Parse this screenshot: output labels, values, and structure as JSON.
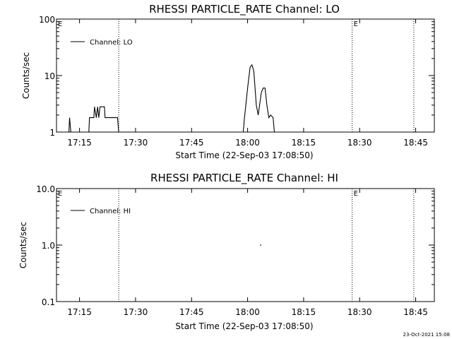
{
  "chart_data": [
    {
      "type": "line",
      "title": "RHESSI PARTICLE_RATE Channel: LO",
      "xlabel": "Start Time (22-Sep-03 17:08:50)",
      "ylabel": "Counts/sec",
      "yscale": "log",
      "ylim": [
        1,
        100
      ],
      "xlim": [
        "17:08:50",
        "18:50:00"
      ],
      "x_ticks": [
        "17:15",
        "17:30",
        "17:45",
        "18:00",
        "18:15",
        "18:30",
        "18:45"
      ],
      "y_ticks": [
        "1",
        "10",
        "100"
      ],
      "legend": [
        "Channel: LO"
      ],
      "legend_position": "top-left",
      "grid": false,
      "markers": [
        {
          "time": "17:25:30",
          "flag": ""
        },
        {
          "time": "18:28:00",
          "flag": "E"
        },
        {
          "time": "18:44:30",
          "flag": ""
        }
      ],
      "axis_flag": "E",
      "segments": [
        [
          [
            "17:12:10",
            1
          ],
          [
            "17:12:20",
            1.8
          ],
          [
            "17:12:40",
            1
          ]
        ],
        [
          [
            "17:17:30",
            1
          ],
          [
            "17:17:40",
            1.8
          ],
          [
            "17:18:50",
            1.8
          ],
          [
            "17:19:00",
            2.8
          ],
          [
            "17:19:30",
            1.8
          ],
          [
            "17:19:50",
            2.8
          ],
          [
            "17:20:10",
            1.8
          ],
          [
            "17:20:30",
            2.8
          ],
          [
            "17:21:40",
            2.8
          ],
          [
            "17:21:50",
            1.8
          ],
          [
            "17:25:10",
            1.8
          ],
          [
            "17:25:30",
            1
          ]
        ],
        [
          [
            "17:58:50",
            1
          ],
          [
            "17:59:10",
            1.8
          ],
          [
            "18:00:00",
            6
          ],
          [
            "18:00:40",
            14
          ],
          [
            "18:01:10",
            15.5
          ],
          [
            "18:01:40",
            12
          ],
          [
            "18:02:20",
            3
          ],
          [
            "18:02:50",
            2
          ],
          [
            "18:03:40",
            5
          ],
          [
            "18:04:10",
            6
          ],
          [
            "18:04:40",
            6
          ],
          [
            "18:05:10",
            3
          ],
          [
            "18:05:40",
            1.8
          ],
          [
            "18:06:10",
            2
          ],
          [
            "18:06:50",
            1.8
          ],
          [
            "18:07:10",
            1
          ]
        ]
      ]
    },
    {
      "type": "line",
      "title": "RHESSI PARTICLE_RATE Channel: HI",
      "xlabel": "Start Time (22-Sep-03 17:08:50)",
      "ylabel": "Counts/sec",
      "yscale": "log",
      "ylim": [
        0.1,
        10
      ],
      "xlim": [
        "17:08:50",
        "18:50:00"
      ],
      "x_ticks": [
        "17:15",
        "17:30",
        "17:45",
        "18:00",
        "18:15",
        "18:30",
        "18:45"
      ],
      "y_ticks": [
        "0.1",
        "1.0",
        "10.0"
      ],
      "legend": [
        "Channel: HI"
      ],
      "legend_position": "top-left",
      "grid": false,
      "markers": [
        {
          "time": "17:25:30",
          "flag": ""
        },
        {
          "time": "18:28:00",
          "flag": "E"
        },
        {
          "time": "18:44:30",
          "flag": ""
        }
      ],
      "axis_flag": "E",
      "segments": [
        [
          [
            "18:03:20",
            1
          ],
          [
            "18:03:40",
            1
          ]
        ]
      ]
    }
  ],
  "footer": {
    "timestamp": "23-Oct-2021 15:08"
  }
}
